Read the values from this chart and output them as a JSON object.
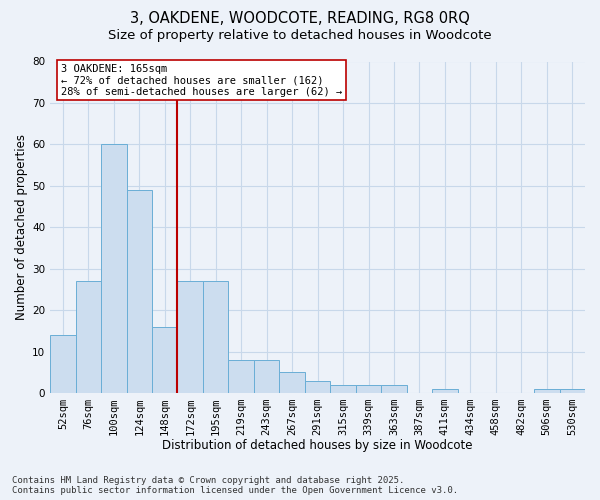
{
  "title_line1": "3, OAKDENE, WOODCOTE, READING, RG8 0RQ",
  "title_line2": "Size of property relative to detached houses in Woodcote",
  "xlabel": "Distribution of detached houses by size in Woodcote",
  "ylabel": "Number of detached properties",
  "categories": [
    "52sqm",
    "76sqm",
    "100sqm",
    "124sqm",
    "148sqm",
    "172sqm",
    "195sqm",
    "219sqm",
    "243sqm",
    "267sqm",
    "291sqm",
    "315sqm",
    "339sqm",
    "363sqm",
    "387sqm",
    "411sqm",
    "434sqm",
    "458sqm",
    "482sqm",
    "506sqm",
    "530sqm"
  ],
  "values": [
    14,
    27,
    60,
    49,
    16,
    27,
    27,
    8,
    8,
    5,
    3,
    2,
    2,
    2,
    0,
    1,
    0,
    0,
    0,
    1,
    1
  ],
  "bar_color": "#ccddef",
  "bar_edge_color": "#6aaed6",
  "grid_color": "#c8d8ea",
  "background_color": "#edf2f9",
  "vline_x": 4.5,
  "vline_color": "#bb0000",
  "annotation_text": "3 OAKDENE: 165sqm\n← 72% of detached houses are smaller (162)\n28% of semi-detached houses are larger (62) →",
  "annotation_box_facecolor": "#ffffff",
  "annotation_box_edgecolor": "#bb0000",
  "footer_line1": "Contains HM Land Registry data © Crown copyright and database right 2025.",
  "footer_line2": "Contains public sector information licensed under the Open Government Licence v3.0.",
  "ylim": [
    0,
    80
  ],
  "yticks": [
    0,
    10,
    20,
    30,
    40,
    50,
    60,
    70,
    80
  ],
  "title_fontsize": 10.5,
  "subtitle_fontsize": 9.5,
  "axis_label_fontsize": 8.5,
  "tick_fontsize": 7.5,
  "annotation_fontsize": 7.5,
  "footer_fontsize": 6.5
}
